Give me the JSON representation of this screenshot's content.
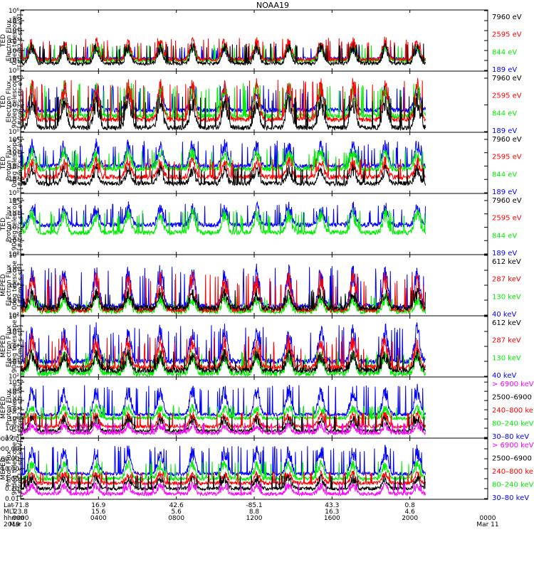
{
  "title": "NOAA19",
  "colors": {
    "black": "#000000",
    "red": "#ff0000",
    "green": "#00ee00",
    "blue": "#0000ff",
    "magenta": "#ff00ff"
  },
  "chart_data": [
    {
      "type": "line",
      "id": "ted-e-0",
      "ylabel": [
        "TED",
        "Electron Flux",
        "0deg telescope",
        "[#/cm2-s-str-eV]"
      ],
      "yscale": "log",
      "ylim": [
        1,
        1000000
      ],
      "yticks": [
        {
          "label": "10⁰",
          "value": 1
        },
        {
          "label": "10¹",
          "value": 10
        },
        {
          "label": "10²",
          "value": 100
        },
        {
          "label": "10³",
          "value": 1000
        },
        {
          "label": "10⁴",
          "value": 10000
        },
        {
          "label": "10⁵",
          "value": 100000
        },
        {
          "label": "10⁶",
          "value": 1000000
        }
      ],
      "legend": [
        {
          "label": "7960 eV",
          "color": "#000000"
        },
        {
          "label": "2595 eV",
          "color": "#ff0000"
        },
        {
          "label": "844 eV",
          "color": "#00ee00"
        },
        {
          "label": "189 eV",
          "color": "#0000ff"
        }
      ],
      "series": [
        {
          "color": "#0000ff",
          "base": 15,
          "peak": 300
        },
        {
          "color": "#00ee00",
          "base": 10,
          "peak": 500
        },
        {
          "color": "#ff0000",
          "base": 12,
          "peak": 2000
        },
        {
          "color": "#000000",
          "base": 5,
          "peak": 500
        }
      ]
    },
    {
      "type": "line",
      "id": "ted-e-90",
      "ylabel": [
        "TED",
        "Electron Flux",
        "90deg telescope",
        "[#/cm2-s-str-eV]"
      ],
      "yscale": "log",
      "ylim": [
        1,
        30000
      ],
      "yticks": [
        {
          "label": "10⁰",
          "value": 1
        },
        {
          "label": "10²",
          "value": 100
        },
        {
          "label": "10⁴",
          "value": 10000
        }
      ],
      "legend": [
        {
          "label": "7960 eV",
          "color": "#000000"
        },
        {
          "label": "2595 eV",
          "color": "#ff0000"
        },
        {
          "label": "844 eV",
          "color": "#00ee00"
        },
        {
          "label": "189 eV",
          "color": "#0000ff"
        }
      ],
      "series": [
        {
          "color": "#0000ff",
          "base": 40,
          "peak": 3000
        },
        {
          "color": "#00ee00",
          "base": 15,
          "peak": 5000
        },
        {
          "color": "#ff0000",
          "base": 8,
          "peak": 8000
        },
        {
          "color": "#000000",
          "base": 2,
          "peak": 500
        }
      ]
    },
    {
      "type": "line",
      "id": "ted-p-0",
      "ylabel": [
        "TED",
        "Proton Flux",
        "0deg telescope",
        "[#/cm2-s-str-eV]"
      ],
      "yscale": "log",
      "ylim": [
        1,
        30000
      ],
      "yticks": [
        {
          "label": "10⁰",
          "value": 1
        },
        {
          "label": "10¹",
          "value": 10
        },
        {
          "label": "10²",
          "value": 100
        },
        {
          "label": "10³",
          "value": 1000
        },
        {
          "label": "10⁴",
          "value": 10000
        }
      ],
      "legend": [
        {
          "label": "7960 eV",
          "color": "#000000"
        },
        {
          "label": "2595 eV",
          "color": "#ff0000"
        },
        {
          "label": "844 eV",
          "color": "#00ee00"
        },
        {
          "label": "189 eV",
          "color": "#0000ff"
        }
      ],
      "series": [
        {
          "color": "#0000ff",
          "base": 100,
          "peak": 8000
        },
        {
          "color": "#00ee00",
          "base": 60,
          "peak": 2000
        },
        {
          "color": "#ff0000",
          "base": 15,
          "peak": 400
        },
        {
          "color": "#000000",
          "base": 5,
          "peak": 100
        }
      ]
    },
    {
      "type": "line",
      "id": "ted-p-90",
      "ylabel": [
        "TED",
        "Proton Flux",
        "90deg telescope",
        "[#/cm2-s-str-eV]"
      ],
      "yscale": "log",
      "ylim": [
        1,
        30000
      ],
      "yticks": [
        {
          "label": "10⁰",
          "value": 1
        },
        {
          "label": "10¹",
          "value": 10
        },
        {
          "label": "10²",
          "value": 100
        },
        {
          "label": "10³",
          "value": 1000
        },
        {
          "label": "10⁴",
          "value": 10000
        }
      ],
      "legend": [
        {
          "label": "7960 eV",
          "color": "#000000"
        },
        {
          "label": "2595 eV",
          "color": "#ff0000"
        },
        {
          "label": "844 eV",
          "color": "#00ee00"
        },
        {
          "label": "189 eV",
          "color": "#0000ff"
        }
      ],
      "series": [
        {
          "color": "#0000ff",
          "base": 150,
          "peak": 6000
        },
        {
          "color": "#00ee00",
          "base": 40,
          "peak": 2000
        }
      ]
    },
    {
      "type": "line",
      "id": "meped-e-0",
      "ylabel": [
        "MEPED",
        "Electron Flux",
        "0deg telescope",
        "[#/cm2-s-str]"
      ],
      "yscale": "log",
      "ylim": [
        100,
        1000000
      ],
      "yticks": [
        {
          "label": "10²",
          "value": 100
        },
        {
          "label": "10³",
          "value": 1000
        },
        {
          "label": "10⁴",
          "value": 10000
        },
        {
          "label": "10⁵",
          "value": 100000
        },
        {
          "label": "10⁶",
          "value": 1000000
        }
      ],
      "legend": [
        {
          "label": "612 keV",
          "color": "#000000"
        },
        {
          "label": "287 keV",
          "color": "#ff0000"
        },
        {
          "label": "130 keV",
          "color": "#00ee00"
        },
        {
          "label": "40 keV",
          "color": "#0000ff"
        }
      ],
      "series": [
        {
          "color": "#0000ff",
          "base": 400,
          "peak": 200000
        },
        {
          "color": "#00ee00",
          "base": 180,
          "peak": 2000
        },
        {
          "color": "#ff0000",
          "base": 220,
          "peak": 60000
        },
        {
          "color": "#000000",
          "base": 300,
          "peak": 5000
        }
      ]
    },
    {
      "type": "line",
      "id": "meped-e-90",
      "ylabel": [
        "MEPED",
        "Electron Flux",
        "90deg telescope",
        "[#/cm2-s-str]"
      ],
      "yscale": "log",
      "ylim": [
        100,
        1000000
      ],
      "yticks": [
        {
          "label": "10²",
          "value": 100
        },
        {
          "label": "10³",
          "value": 1000
        },
        {
          "label": "10⁴",
          "value": 10000
        },
        {
          "label": "10⁵",
          "value": 100000
        },
        {
          "label": "10⁶",
          "value": 1000000
        }
      ],
      "legend": [
        {
          "label": "612 keV",
          "color": "#000000"
        },
        {
          "label": "287 keV",
          "color": "#ff0000"
        },
        {
          "label": "130 keV",
          "color": "#00ee00"
        },
        {
          "label": "40 keV",
          "color": "#0000ff"
        }
      ],
      "series": [
        {
          "color": "#0000ff",
          "base": 1000,
          "peak": 300000
        },
        {
          "color": "#00ee00",
          "base": 150,
          "peak": 5000
        },
        {
          "color": "#ff0000",
          "base": 400,
          "peak": 50000
        },
        {
          "color": "#000000",
          "base": 250,
          "peak": 5000
        }
      ]
    },
    {
      "type": "line",
      "id": "meped-p-0",
      "ylabel": [
        "MEPED",
        "Proton Flux",
        "0deg telescope",
        "[#/cm2-s-str-keV]"
      ],
      "yscale": "log",
      "ylim": [
        0.01,
        30000
      ],
      "yticks": [
        {
          "label": "10⁻²",
          "value": 0.01
        },
        {
          "label": "10⁻¹",
          "value": 0.1
        },
        {
          "label": "10⁰",
          "value": 1
        },
        {
          "label": "10¹",
          "value": 10
        },
        {
          "label": "10²",
          "value": 100
        },
        {
          "label": "10³",
          "value": 1000
        },
        {
          "label": "10⁴",
          "value": 10000
        }
      ],
      "legend": [
        {
          "label": "> 6900 keV",
          "color": "#ff00ff"
        },
        {
          "label": "2500–6900",
          "color": "#000000"
        },
        {
          "label": "240–800 ke",
          "color": "#ff0000"
        },
        {
          "label": "80–240 keV",
          "color": "#00ee00"
        },
        {
          "label": "30–80 keV",
          "color": "#0000ff"
        }
      ],
      "series": [
        {
          "color": "#0000ff",
          "base": 3,
          "peak": 5000
        },
        {
          "color": "#00ee00",
          "base": 1.2,
          "peak": 30
        },
        {
          "color": "#ff0000",
          "base": 0.15,
          "peak": 5
        },
        {
          "color": "#000000",
          "base": 0.05,
          "peak": 2
        },
        {
          "color": "#ff00ff",
          "base": 0.03,
          "peak": 0.3
        }
      ]
    },
    {
      "type": "line",
      "id": "meped-p-90",
      "ylabel": [
        "MEPED",
        "Proton Flux",
        "90deg telescope",
        "[#/cm2-s-str-keV]"
      ],
      "yscale": "log",
      "ylim": [
        0.01,
        10000
      ],
      "yticks": [
        {
          "label": "0.01",
          "value": 0.01
        },
        {
          "label": "0.10",
          "value": 0.1
        },
        {
          "label": "1.00",
          "value": 1
        },
        {
          "label": "10.00",
          "value": 10
        },
        {
          "label": "100.00",
          "value": 100
        },
        {
          "label": "1000.00",
          "value": 1000
        },
        {
          "label": "10000.00",
          "value": 10000
        }
      ],
      "legend": [
        {
          "label": "> 6900 keV",
          "color": "#ff00ff"
        },
        {
          "label": "2500–6900",
          "color": "#000000"
        },
        {
          "label": "240–800 ke",
          "color": "#ff0000"
        },
        {
          "label": "80–240 keV",
          "color": "#00ee00"
        },
        {
          "label": "30–80 keV",
          "color": "#0000ff"
        }
      ],
      "series": [
        {
          "color": "#0000ff",
          "base": 3,
          "peak": 2000
        },
        {
          "color": "#00ee00",
          "base": 1,
          "peak": 60
        },
        {
          "color": "#ff0000",
          "base": 0.35,
          "peak": 5
        },
        {
          "color": "#000000",
          "base": 0.1,
          "peak": 2
        },
        {
          "color": "#ff00ff",
          "base": 0.03,
          "peak": 0.3
        }
      ]
    }
  ],
  "x_axis": {
    "row_labels": [
      "Lat",
      "MLT",
      "hhmm",
      "2019"
    ],
    "ticks": [
      {
        "time": "0000",
        "lat": "-71.8",
        "mlt": "23.8",
        "date": "Mar 10"
      },
      {
        "time": "0400",
        "lat": "16.9",
        "mlt": "15.6",
        "date": ""
      },
      {
        "time": "0800",
        "lat": "42.6",
        "mlt": "5.6",
        "date": ""
      },
      {
        "time": "1200",
        "lat": "-85.1",
        "mlt": "8.8",
        "date": ""
      },
      {
        "time": "1600",
        "lat": "43.3",
        "mlt": "16.3",
        "date": ""
      },
      {
        "time": "2000",
        "lat": "0.8",
        "mlt": "4.6",
        "date": ""
      },
      {
        "time": "0000",
        "lat": "",
        "mlt": "",
        "date": "Mar 11"
      }
    ],
    "data_end_hour": 20.8,
    "range_hours": [
      0,
      24
    ]
  }
}
